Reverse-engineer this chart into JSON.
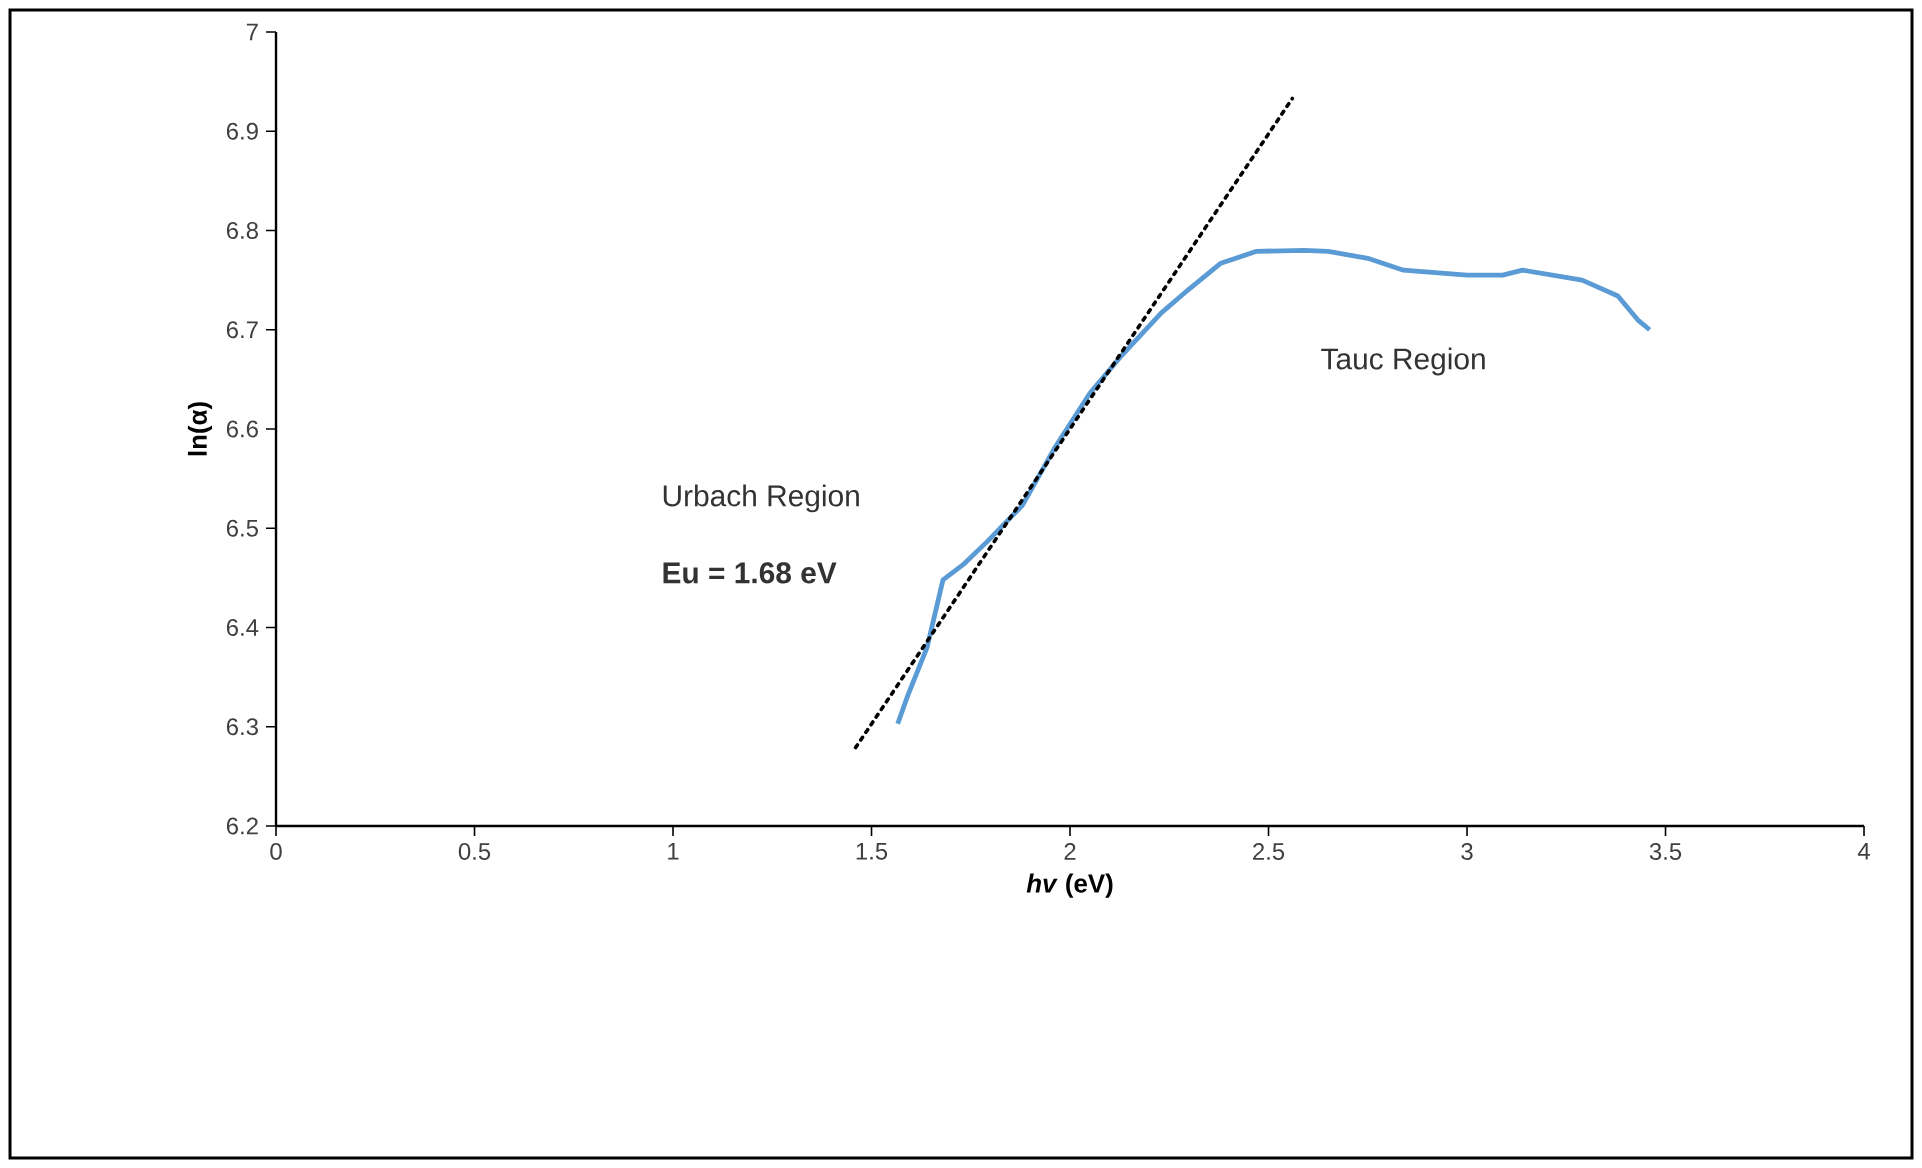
{
  "chart_data": {
    "type": "line",
    "xlabel": "*hv* (eV)",
    "ylabel": "ln(α)",
    "xlim": [
      0,
      4
    ],
    "xticks": [
      0,
      0.5,
      1,
      1.5,
      2,
      2.5,
      3,
      3.5,
      4
    ],
    "ylim": [
      6.2,
      7
    ],
    "yticks": [
      6.2,
      6.3,
      6.4,
      6.5,
      6.6,
      6.7,
      6.8,
      6.9,
      7
    ],
    "grid": false,
    "series": [
      {
        "color": "#5b9bd5",
        "line_style": "solid",
        "x": [
          1.566,
          1.59,
          1.64,
          1.68,
          1.73,
          1.79,
          1.88,
          1.96,
          2.05,
          2.13,
          2.23,
          2.3,
          2.38,
          2.47,
          2.59,
          2.65,
          2.75,
          2.84,
          3.0,
          3.09,
          3.14,
          3.29,
          3.38,
          3.43,
          3.46
        ],
        "values": [
          6.303,
          6.33,
          6.38,
          6.448,
          6.463,
          6.486,
          6.523,
          6.58,
          6.636,
          6.674,
          6.717,
          6.741,
          6.767,
          6.779,
          6.78,
          6.779,
          6.772,
          6.76,
          6.755,
          6.755,
          6.76,
          6.75,
          6.734,
          6.71,
          6.7
        ]
      },
      {
        "color": "#000000",
        "line_style": "dotted",
        "x": [
          1.46,
          2.56
        ],
        "values": [
          6.279,
          6.933
        ]
      }
    ],
    "annotations": [
      "Urbach Region",
      "**Eu = 1.68 eV**",
      "Tauc Region"
    ]
  }
}
